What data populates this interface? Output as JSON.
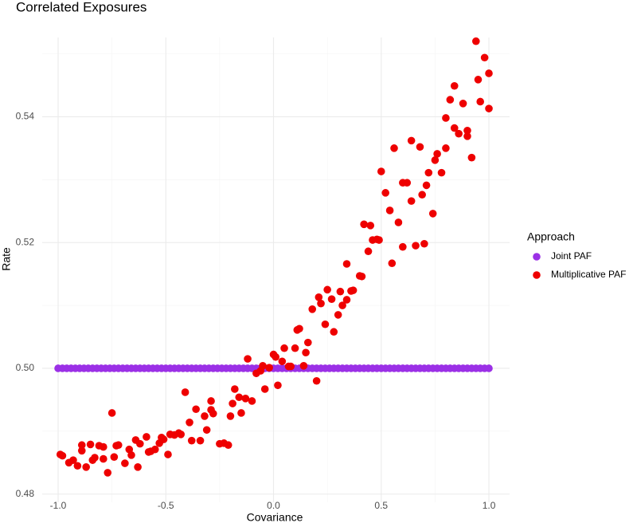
{
  "chart_data": {
    "type": "scatter",
    "title": "Correlated Exposures",
    "x_label": "Covariance",
    "y_label": "Rate",
    "legend_title": "Approach",
    "legend_position": "right",
    "grid": true,
    "xlim": [
      -1.074,
      1.096
    ],
    "ylim": [
      0.4787,
      0.5526
    ],
    "xticks": [
      {
        "value": -1,
        "label": "-1.0"
      },
      {
        "value": -0.5,
        "label": "-0.5"
      },
      {
        "value": 0,
        "label": "0.0"
      },
      {
        "value": 0.5,
        "label": "0.5"
      },
      {
        "value": 1,
        "label": "1.0"
      }
    ],
    "yticks": [
      0.48,
      {
        "value": 0.5,
        "label": "0.50"
      },
      0.52,
      0.54
    ],
    "minor_xticks": [
      -0.75,
      -0.25,
      0.25,
      0.75
    ],
    "minor_yticks": [
      0.49,
      0.51,
      0.53,
      0.55
    ],
    "series": [
      {
        "name": "Joint PAF",
        "color": "#9b30e6",
        "x": [
          -1,
          -0.98,
          -0.96,
          -0.94,
          -0.92,
          -0.9,
          -0.88,
          -0.86,
          -0.84,
          -0.82,
          -0.8,
          -0.78,
          -0.76,
          -0.74,
          -0.72,
          -0.7,
          -0.68,
          -0.66,
          -0.64,
          -0.62,
          -0.6,
          -0.58,
          -0.56,
          -0.54,
          -0.52,
          -0.5,
          -0.48,
          -0.46,
          -0.44,
          -0.42,
          -0.4,
          -0.38,
          -0.36,
          -0.34,
          -0.32,
          -0.3,
          -0.28,
          -0.26,
          -0.24,
          -0.22,
          -0.2,
          -0.18,
          -0.16,
          -0.14,
          -0.12,
          -0.1,
          -0.08,
          -0.06,
          -0.04,
          -0.02,
          0,
          0.02,
          0.04,
          0.06,
          0.08,
          0.1,
          0.12,
          0.14,
          0.16,
          0.18,
          0.2,
          0.22,
          0.24,
          0.26,
          0.28,
          0.3,
          0.32,
          0.34,
          0.36,
          0.38,
          0.4,
          0.42,
          0.44,
          0.46,
          0.48,
          0.5,
          0.52,
          0.54,
          0.56,
          0.58,
          0.6,
          0.62,
          0.64,
          0.66,
          0.68,
          0.7,
          0.72,
          0.74,
          0.76,
          0.78,
          0.8,
          0.82,
          0.84,
          0.86,
          0.88,
          0.9,
          0.92,
          0.94,
          0.96,
          0.98,
          1
        ],
        "values": [
          0.5,
          0.5,
          0.5,
          0.5,
          0.5,
          0.5,
          0.5,
          0.5,
          0.5,
          0.5,
          0.5,
          0.5,
          0.5,
          0.5,
          0.5,
          0.5,
          0.5,
          0.5,
          0.5,
          0.5,
          0.5,
          0.5,
          0.5,
          0.5,
          0.5,
          0.5,
          0.5,
          0.5,
          0.5,
          0.5,
          0.5,
          0.5,
          0.5,
          0.5,
          0.5,
          0.5,
          0.5,
          0.5,
          0.5,
          0.5,
          0.5,
          0.5,
          0.5,
          0.5,
          0.5,
          0.5,
          0.5,
          0.5,
          0.5,
          0.5,
          0.5,
          0.5,
          0.5,
          0.5,
          0.5,
          0.5,
          0.5,
          0.5,
          0.5,
          0.5,
          0.5,
          0.5,
          0.5,
          0.5,
          0.5,
          0.5,
          0.5,
          0.5,
          0.5,
          0.5,
          0.5,
          0.5,
          0.5,
          0.5,
          0.5,
          0.5,
          0.5,
          0.5,
          0.5,
          0.5,
          0.5,
          0.5,
          0.5,
          0.5,
          0.5,
          0.5,
          0.5,
          0.5,
          0.5,
          0.5,
          0.5,
          0.5,
          0.5,
          0.5,
          0.5,
          0.5,
          0.5,
          0.5,
          0.5,
          0.5,
          0.5
        ]
      },
      {
        "name": "Multiplicative PAF",
        "color": "#ee0000",
        "x": [
          -0.99,
          -0.98,
          -0.95,
          -0.93,
          -0.91,
          -0.89,
          -0.89,
          -0.87,
          -0.85,
          -0.84,
          -0.83,
          -0.81,
          -0.79,
          -0.79,
          -0.77,
          -0.75,
          -0.74,
          -0.73,
          -0.72,
          -0.69,
          -0.67,
          -0.66,
          -0.64,
          -0.63,
          -0.62,
          -0.59,
          -0.58,
          -0.57,
          -0.55,
          -0.53,
          -0.52,
          -0.51,
          -0.49,
          -0.48,
          -0.46,
          -0.44,
          -0.43,
          -0.41,
          -0.39,
          -0.38,
          -0.36,
          -0.34,
          -0.32,
          -0.31,
          -0.29,
          -0.29,
          -0.28,
          -0.25,
          -0.23,
          -0.21,
          -0.2,
          -0.19,
          -0.18,
          -0.16,
          -0.15,
          -0.13,
          -0.12,
          -0.1,
          -0.08,
          -0.06,
          -0.05,
          -0.04,
          -0.02,
          0,
          0.01,
          0.02,
          0.04,
          0.05,
          0.07,
          0.08,
          0.1,
          0.11,
          0.12,
          0.14,
          0.15,
          0.16,
          0.18,
          0.2,
          0.21,
          0.22,
          0.24,
          0.25,
          0.27,
          0.28,
          0.3,
          0.31,
          0.32,
          0.34,
          0.34,
          0.36,
          0.37,
          0.4,
          0.41,
          0.42,
          0.44,
          0.45,
          0.46,
          0.48,
          0.49,
          0.5,
          0.52,
          0.54,
          0.55,
          0.56,
          0.58,
          0.6,
          0.6,
          0.62,
          0.64,
          0.64,
          0.66,
          0.68,
          0.69,
          0.7,
          0.71,
          0.72,
          0.74,
          0.75,
          0.76,
          0.78,
          0.8,
          0.8,
          0.82,
          0.84,
          0.84,
          0.86,
          0.88,
          0.9,
          0.9,
          0.92,
          0.94,
          0.95,
          0.96,
          0.98,
          1,
          1
        ],
        "values": [
          0.4863,
          0.4861,
          0.485,
          0.4854,
          0.4845,
          0.4878,
          0.4869,
          0.4843,
          0.4879,
          0.4854,
          0.4858,
          0.4877,
          0.4875,
          0.4856,
          0.4834,
          0.4929,
          0.4859,
          0.4877,
          0.4878,
          0.4849,
          0.4871,
          0.4862,
          0.4886,
          0.4843,
          0.488,
          0.4891,
          0.4867,
          0.4868,
          0.4871,
          0.4881,
          0.489,
          0.4887,
          0.4863,
          0.4895,
          0.4894,
          0.4897,
          0.4895,
          0.4962,
          0.4914,
          0.4885,
          0.4935,
          0.4885,
          0.4924,
          0.4902,
          0.4948,
          0.4934,
          0.4928,
          0.488,
          0.4881,
          0.4878,
          0.4924,
          0.4944,
          0.4967,
          0.4954,
          0.4929,
          0.4952,
          0.5015,
          0.4948,
          0.4992,
          0.4996,
          0.5004,
          0.4967,
          0.5001,
          0.5022,
          0.5018,
          0.4973,
          0.5011,
          0.5032,
          0.5003,
          0.5003,
          0.5032,
          0.5061,
          0.5063,
          0.5004,
          0.5025,
          0.5041,
          0.5094,
          0.498,
          0.5113,
          0.5103,
          0.507,
          0.5125,
          0.511,
          0.5058,
          0.5085,
          0.5122,
          0.51,
          0.5109,
          0.5166,
          0.5123,
          0.5124,
          0.5147,
          0.5146,
          0.5229,
          0.5186,
          0.5227,
          0.5204,
          0.5205,
          0.5204,
          0.5313,
          0.5279,
          0.5251,
          0.5167,
          0.535,
          0.5232,
          0.5193,
          0.5295,
          0.5295,
          0.5362,
          0.5266,
          0.5195,
          0.5352,
          0.5276,
          0.5198,
          0.5291,
          0.5311,
          0.5246,
          0.5331,
          0.5341,
          0.5311,
          0.5398,
          0.535,
          0.5427,
          0.5449,
          0.5382,
          0.5373,
          0.5421,
          0.5378,
          0.5369,
          0.5335,
          0.552,
          0.5459,
          0.5424,
          0.5494,
          0.5469,
          0.5413
        ]
      }
    ]
  }
}
